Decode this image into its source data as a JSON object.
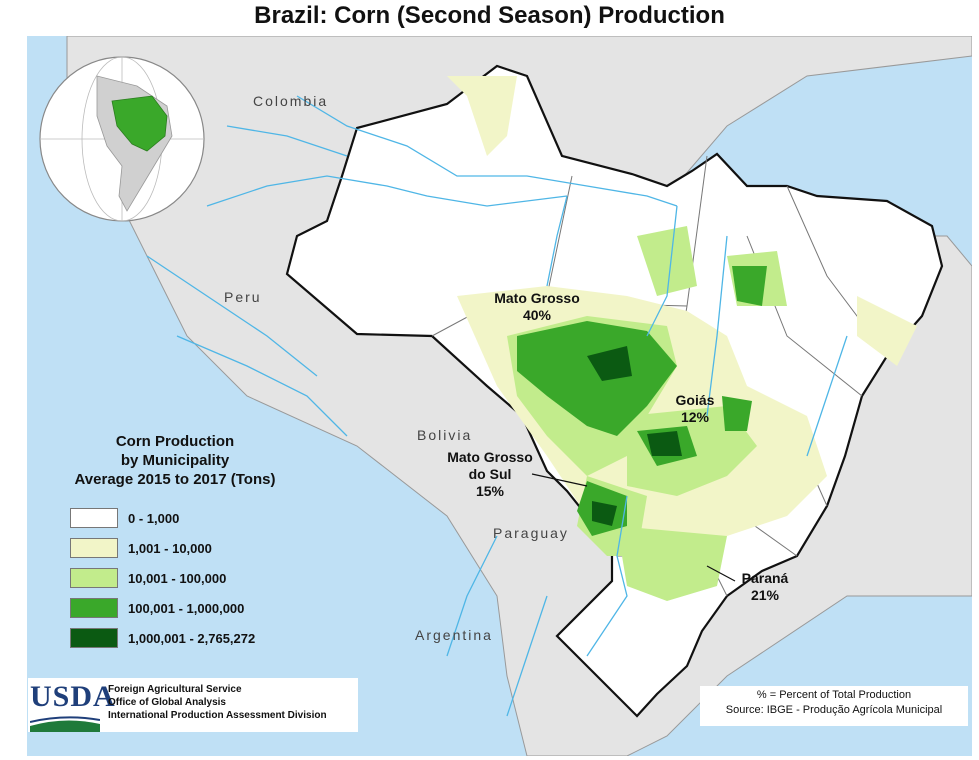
{
  "title": "Brazil: Corn (Second Season) Production",
  "countries": [
    "Colombia",
    "Peru",
    "Bolivia",
    "Paraguay",
    "Argentina"
  ],
  "states": [
    {
      "name": "Mato Grosso",
      "share": "40%"
    },
    {
      "name": "Goiás",
      "share": "12%"
    },
    {
      "name": "Mato Grosso do Sul",
      "line1": "Mato Grosso",
      "line2": "do Sul",
      "share": "15%"
    },
    {
      "name": "Paraná",
      "share": "21%"
    }
  ],
  "legend": {
    "title_line1": "Corn Production",
    "title_line2": "by Municipality",
    "title_line3": "Average 2015 to 2017 (Tons)",
    "classes": [
      {
        "label": "0 - 1,000",
        "color": "#ffffff"
      },
      {
        "label": "1,001 - 10,000",
        "color": "#f2f5c8"
      },
      {
        "label": "10,001 - 100,000",
        "color": "#c2ec8c"
      },
      {
        "label": "100,001 - 1,000,000",
        "color": "#3aa82a"
      },
      {
        "label": "1,000,001 - 2,765,272",
        "color": "#0b5a12"
      }
    ]
  },
  "agency": {
    "logo": "USDA",
    "line1": "Foreign Agricultural Service",
    "line2": "Office of Global Analysis",
    "line3": "International Production Assessment Division"
  },
  "source": {
    "line1": "% = Percent of Total Production",
    "line2": "Source: IBGE - Produção Agrícola Municipal"
  },
  "colors": {
    "ocean": "#bfe0f5",
    "land": "#e4e4e4",
    "brazil": "#ffffff",
    "rivers": "#4fb6e6"
  }
}
